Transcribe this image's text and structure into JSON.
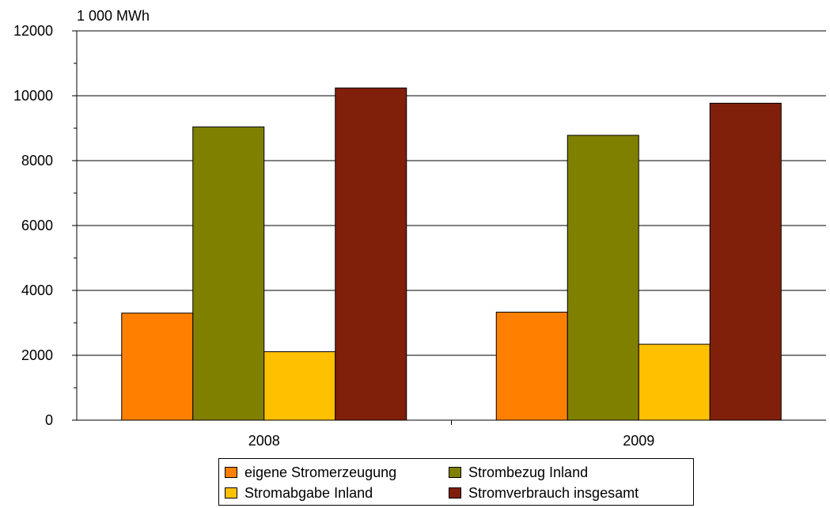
{
  "chart_data": {
    "type": "bar",
    "unit_label": "1 000 MWh",
    "categories": [
      "2008",
      "2009"
    ],
    "series": [
      {
        "name": "eigene Stromerzeugung",
        "values": [
          3300,
          3330
        ],
        "color": "#FF8000"
      },
      {
        "name": "Strombezug Inland",
        "values": [
          9040,
          8780
        ],
        "color": "#808000"
      },
      {
        "name": "Stromabgabe Inland",
        "values": [
          2110,
          2340
        ],
        "color": "#FFC000"
      },
      {
        "name": "Stromverbrauch insgesamt",
        "values": [
          10240,
          9770
        ],
        "color": "#80200A"
      }
    ],
    "ylim": [
      0,
      12000
    ],
    "yticks": [
      "0",
      "2000",
      "4000",
      "6000",
      "8000",
      "10000",
      "12000"
    ],
    "grid": true,
    "legend_position": "bottom"
  }
}
